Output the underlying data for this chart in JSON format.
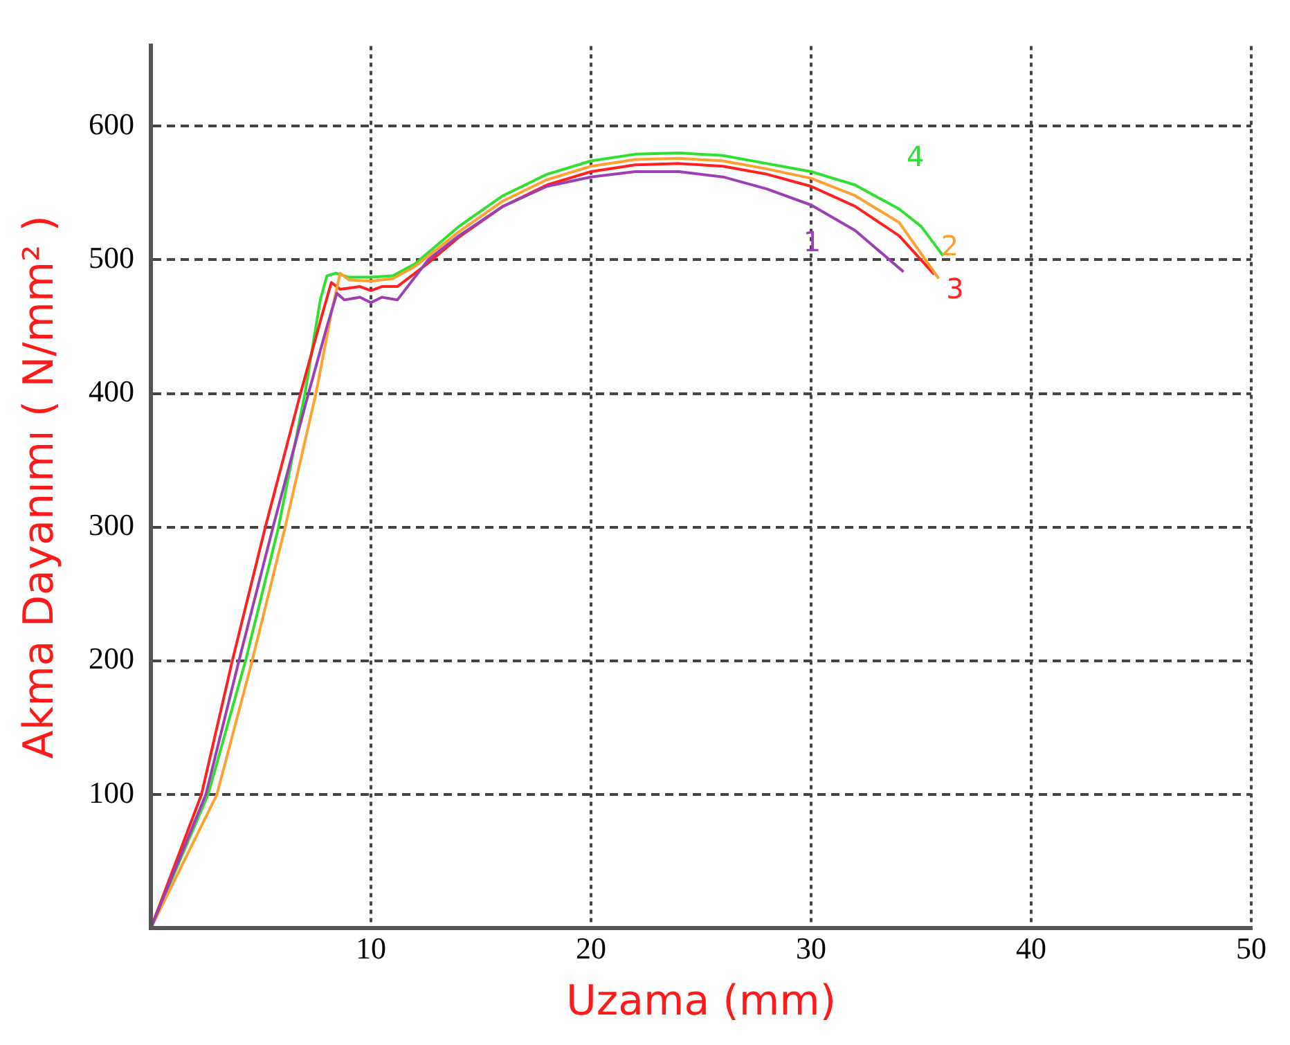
{
  "chart_data": {
    "type": "line",
    "xlabel": "Uzama (mm)",
    "ylabel": "Akma Dayanımı ( N/mm² )",
    "xlim": [
      0,
      50
    ],
    "ylim": [
      0,
      660
    ],
    "xticks": [
      10,
      20,
      30,
      40,
      50
    ],
    "yticks": [
      100,
      200,
      300,
      400,
      500,
      600
    ],
    "grid": true,
    "legend": false,
    "marker": "none",
    "line_style": "solid",
    "series": [
      {
        "name": "1",
        "color": "#9b3fb5",
        "x": [
          0,
          2.5,
          4.0,
          5.55,
          7.16,
          8.0,
          8.45,
          8.8,
          9.5,
          10,
          10.5,
          11.2,
          12.6,
          14,
          16,
          18,
          20,
          22,
          24,
          26,
          28,
          30,
          32,
          34.2
        ],
        "values": [
          0,
          100,
          200,
          300,
          400,
          450,
          475,
          470,
          472,
          468,
          472,
          470,
          500,
          518,
          540,
          555,
          562,
          566,
          566,
          562,
          553,
          541,
          522,
          491
        ]
      },
      {
        "name": "2",
        "color": "#ffa030",
        "x": [
          0,
          3.0,
          4.6,
          6.1,
          7.5,
          8.2,
          8.6,
          9,
          10,
          11,
          12,
          14,
          16,
          18,
          20,
          22,
          24,
          26,
          28,
          30,
          32,
          34,
          35.8
        ],
        "values": [
          0,
          100,
          200,
          300,
          400,
          460,
          490,
          485,
          484,
          486,
          495,
          521,
          544,
          560,
          570,
          575,
          576,
          574,
          568,
          561,
          548,
          528,
          486
        ]
      },
      {
        "name": "3",
        "color": "#ff2020",
        "x": [
          0,
          2.3,
          3.7,
          5.2,
          6.8,
          7.8,
          8.2,
          8.6,
          9.5,
          10,
          10.5,
          11.2,
          12.4,
          14,
          16,
          18,
          20,
          22,
          24,
          26,
          28,
          30,
          32,
          34,
          35.6
        ],
        "values": [
          0,
          100,
          200,
          300,
          400,
          460,
          483,
          478,
          480,
          477,
          480,
          480,
          495,
          517,
          540,
          556,
          566,
          571,
          572,
          570,
          564,
          555,
          540,
          518,
          489
        ]
      },
      {
        "name": "4",
        "color": "#30e030",
        "x": [
          0,
          2.6,
          4.3,
          5.8,
          7.0,
          7.7,
          8.0,
          8.4,
          9,
          10,
          11,
          12,
          14,
          16,
          18,
          20,
          22,
          24,
          26,
          28,
          30,
          32,
          34,
          35,
          36
        ],
        "values": [
          0,
          100,
          200,
          300,
          400,
          470,
          488,
          490,
          487,
          487,
          488,
          497,
          525,
          548,
          564,
          574,
          579,
          580,
          578,
          572,
          566,
          556,
          538,
          525,
          503
        ]
      }
    ]
  }
}
